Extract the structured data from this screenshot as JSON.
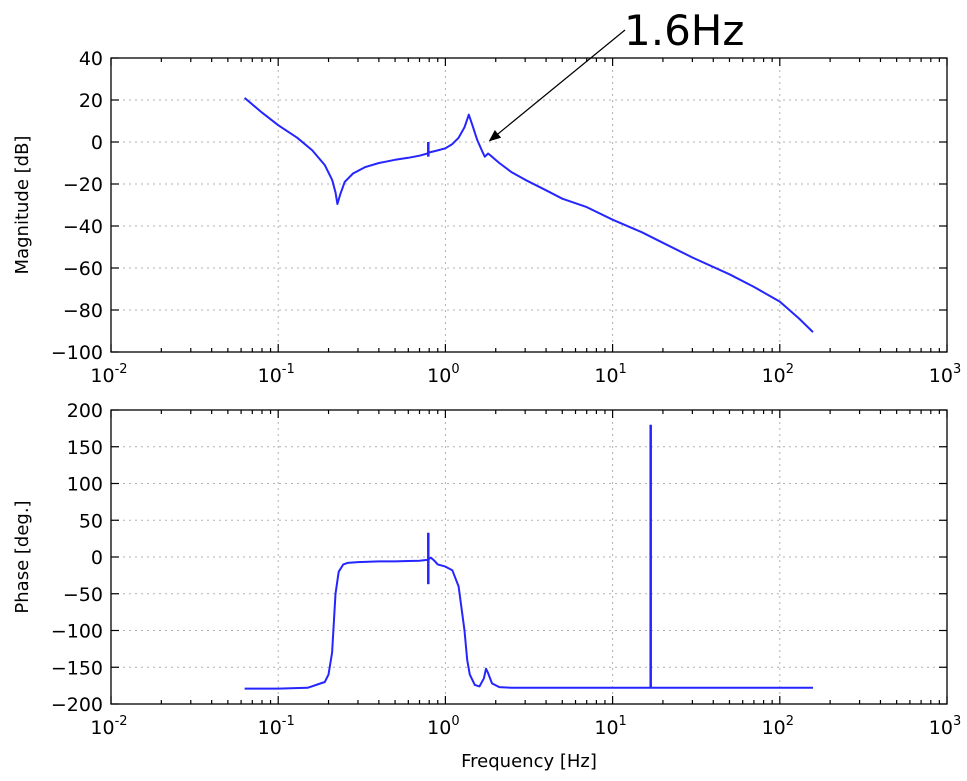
{
  "colors": {
    "series": "#2525ff",
    "grid": "#b0b0b0",
    "axes": "#000000"
  },
  "annotation": {
    "text": "1.6Hz",
    "target_freq": 1.6,
    "target_db": 2
  },
  "chart_data": [
    {
      "type": "line",
      "xscale": "log",
      "xlim": [
        0.01,
        1000
      ],
      "ylim": [
        -100,
        40
      ],
      "xlabel": "",
      "ylabel": "Magnitude [dB]",
      "grid": true,
      "x_ticks": [
        {
          "base": "10",
          "exp": "-2",
          "value": 0.01
        },
        {
          "base": "10",
          "exp": "-1",
          "value": 0.1
        },
        {
          "base": "10",
          "exp": "0",
          "value": 1
        },
        {
          "base": "10",
          "exp": "1",
          "value": 10
        },
        {
          "base": "10",
          "exp": "2",
          "value": 100
        },
        {
          "base": "10",
          "exp": "3",
          "value": 1000
        }
      ],
      "y_ticks": [
        "40",
        "20",
        "0",
        "−20",
        "−40",
        "−60",
        "−80",
        "−100"
      ],
      "y_tick_values": [
        40,
        20,
        0,
        -20,
        -40,
        -60,
        -80,
        -100
      ],
      "series": [
        {
          "x": [
            0.063,
            0.08,
            0.1,
            0.13,
            0.16,
            0.19,
            0.21,
            0.22,
            0.226,
            0.235,
            0.25,
            0.28,
            0.33,
            0.4,
            0.5,
            0.6,
            0.7,
            0.78,
            0.8,
            0.9,
            1.0,
            1.1,
            1.2,
            1.3,
            1.38,
            1.45,
            1.55,
            1.65,
            1.72,
            1.8,
            1.9,
            2.1,
            2.5,
            3,
            4,
            5,
            7,
            10,
            15,
            20,
            30,
            50,
            70,
            100,
            130,
            158
          ],
          "y": [
            21,
            14,
            8,
            2,
            -4,
            -11,
            -18,
            -24,
            -29.5,
            -25,
            -19,
            -15,
            -12,
            -10,
            -8.5,
            -7.5,
            -6.5,
            -5.5,
            -5,
            -4,
            -3,
            -1,
            2,
            7,
            13,
            8,
            1,
            -4,
            -7,
            -5.5,
            -7,
            -10,
            -14.5,
            -18,
            -23,
            -27,
            -31,
            -37,
            -43,
            -48,
            -55,
            -63,
            -69,
            -76,
            -84,
            -90.5
          ]
        },
        {
          "x": [
            0.79,
            0.79
          ],
          "y": [
            -7,
            0
          ]
        }
      ]
    },
    {
      "type": "line",
      "xscale": "log",
      "xlim": [
        0.01,
        1000
      ],
      "ylim": [
        -200,
        200
      ],
      "xlabel": "Frequency [Hz]",
      "ylabel": "Phase [deg.]",
      "grid": true,
      "x_ticks": [
        {
          "base": "10",
          "exp": "-2",
          "value": 0.01
        },
        {
          "base": "10",
          "exp": "-1",
          "value": 0.1
        },
        {
          "base": "10",
          "exp": "0",
          "value": 1
        },
        {
          "base": "10",
          "exp": "1",
          "value": 10
        },
        {
          "base": "10",
          "exp": "2",
          "value": 100
        },
        {
          "base": "10",
          "exp": "3",
          "value": 1000
        }
      ],
      "y_ticks": [
        "200",
        "150",
        "100",
        "50",
        "0",
        "−50",
        "−100",
        "−150",
        "−200"
      ],
      "y_tick_values": [
        200,
        150,
        100,
        50,
        0,
        -50,
        -100,
        -150,
        -200
      ],
      "series": [
        {
          "x": [
            0.063,
            0.1,
            0.15,
            0.19,
            0.2,
            0.21,
            0.215,
            0.22,
            0.23,
            0.245,
            0.26,
            0.3,
            0.4,
            0.5,
            0.6,
            0.7,
            0.78,
            0.82,
            0.86,
            0.9,
            1.0,
            1.1,
            1.2,
            1.3,
            1.35,
            1.4,
            1.5,
            1.6,
            1.7,
            1.75,
            1.8,
            1.9,
            2.1,
            2.5,
            3,
            5,
            10,
            16.9,
            30,
            50,
            100,
            158
          ],
          "y": [
            -179,
            -179,
            -178,
            -170,
            -160,
            -130,
            -90,
            -50,
            -20,
            -10,
            -8,
            -7,
            -6,
            -6,
            -5.5,
            -5,
            -4,
            -1,
            -5,
            -10,
            -13,
            -18,
            -40,
            -100,
            -140,
            -160,
            -174,
            -176,
            -165,
            -152,
            -158,
            -172,
            -177,
            -178,
            -178,
            -178,
            -178,
            -178,
            -178,
            -178,
            -178,
            -178
          ]
        },
        {
          "x": [
            0.79,
            0.79
          ],
          "y": [
            -37,
            33
          ]
        },
        {
          "x": [
            16.9,
            16.9
          ],
          "y": [
            -178,
            180
          ]
        }
      ]
    }
  ]
}
